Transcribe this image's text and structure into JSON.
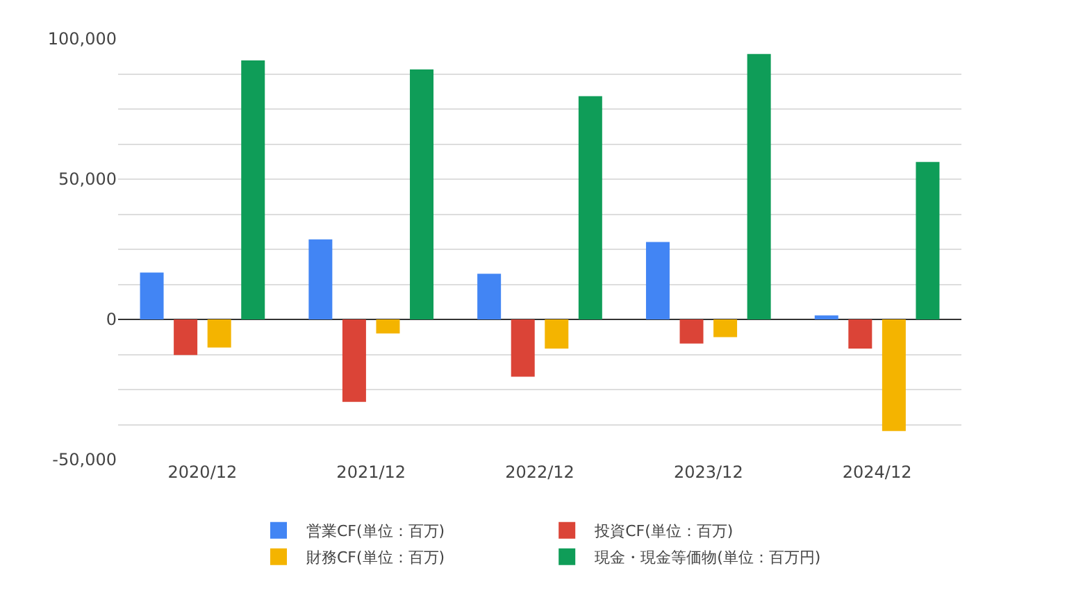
{
  "chart_data": {
    "type": "bar",
    "categories": [
      "2020/12",
      "2021/12",
      "2022/12",
      "2023/12",
      "2024/12"
    ],
    "series": [
      {
        "name": "営業CF(単位：百万)",
        "color": "#4285f4",
        "values": [
          16700,
          28500,
          16300,
          27600,
          1400
        ]
      },
      {
        "name": "投資CF(単位：百万)",
        "color": "#db4437",
        "values": [
          -12700,
          -29400,
          -20400,
          -8600,
          -10400
        ]
      },
      {
        "name": "財務CF(単位：百万)",
        "color": "#f4b400",
        "values": [
          -10000,
          -5000,
          -10400,
          -6300,
          -39800
        ]
      },
      {
        "name": "現金・現金等価物(単位：百万円)",
        "color": "#0f9d58",
        "values": [
          92300,
          89100,
          79600,
          94600,
          56100
        ]
      }
    ],
    "ylim": [
      -50000,
      100000
    ],
    "yticks": [
      {
        "value": -50000,
        "label": "-50,000"
      },
      {
        "value": -37500,
        "label": null
      },
      {
        "value": -25000,
        "label": null
      },
      {
        "value": -12500,
        "label": null
      },
      {
        "value": 0,
        "label": "0"
      },
      {
        "value": 12500,
        "label": null
      },
      {
        "value": 25000,
        "label": null
      },
      {
        "value": 37500,
        "label": null
      },
      {
        "value": 50000,
        "label": "50,000"
      },
      {
        "value": 62500,
        "label": null
      },
      {
        "value": 75000,
        "label": null
      },
      {
        "value": 87500,
        "label": null
      },
      {
        "value": 100000,
        "label": "100,000"
      }
    ],
    "grid": "y",
    "legend": "bottom"
  }
}
